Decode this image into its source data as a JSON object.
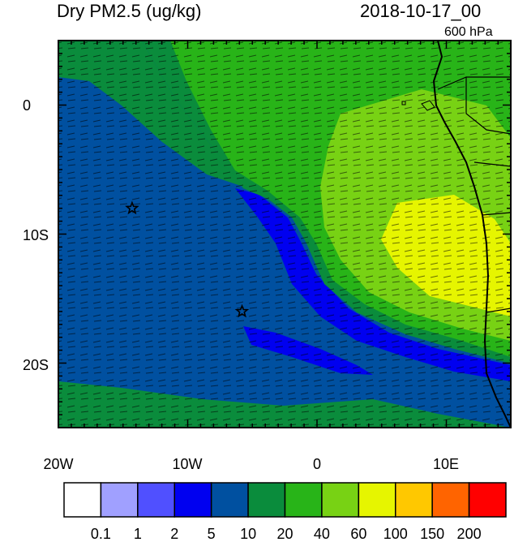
{
  "header": {
    "left_title": "Dry PM2.5 (ug/kg)",
    "right_title": "2018-10-17_00",
    "level": "600 hPa"
  },
  "axes": {
    "lon_labels": [
      "20W",
      "10W",
      "0",
      "10E"
    ],
    "lat_labels": [
      "0",
      "10S",
      "20S"
    ]
  },
  "markers": [
    {
      "name": "star-marker-1",
      "lon": -14.3,
      "lat": -8.0
    },
    {
      "name": "star-marker-2",
      "lon": -5.8,
      "lat": -16.0
    }
  ],
  "colorbar": {
    "colors": [
      "#ffffff",
      "#a0a0ff",
      "#5050ff",
      "#0000f0",
      "#0050a0",
      "#0a8c3c",
      "#28b418",
      "#78d214",
      "#e6f500",
      "#ffc800",
      "#ff6400",
      "#ff0000"
    ],
    "labels": [
      "0.1",
      "1",
      "2",
      "5",
      "10",
      "20",
      "40",
      "60",
      "100",
      "150",
      "200"
    ]
  }
}
